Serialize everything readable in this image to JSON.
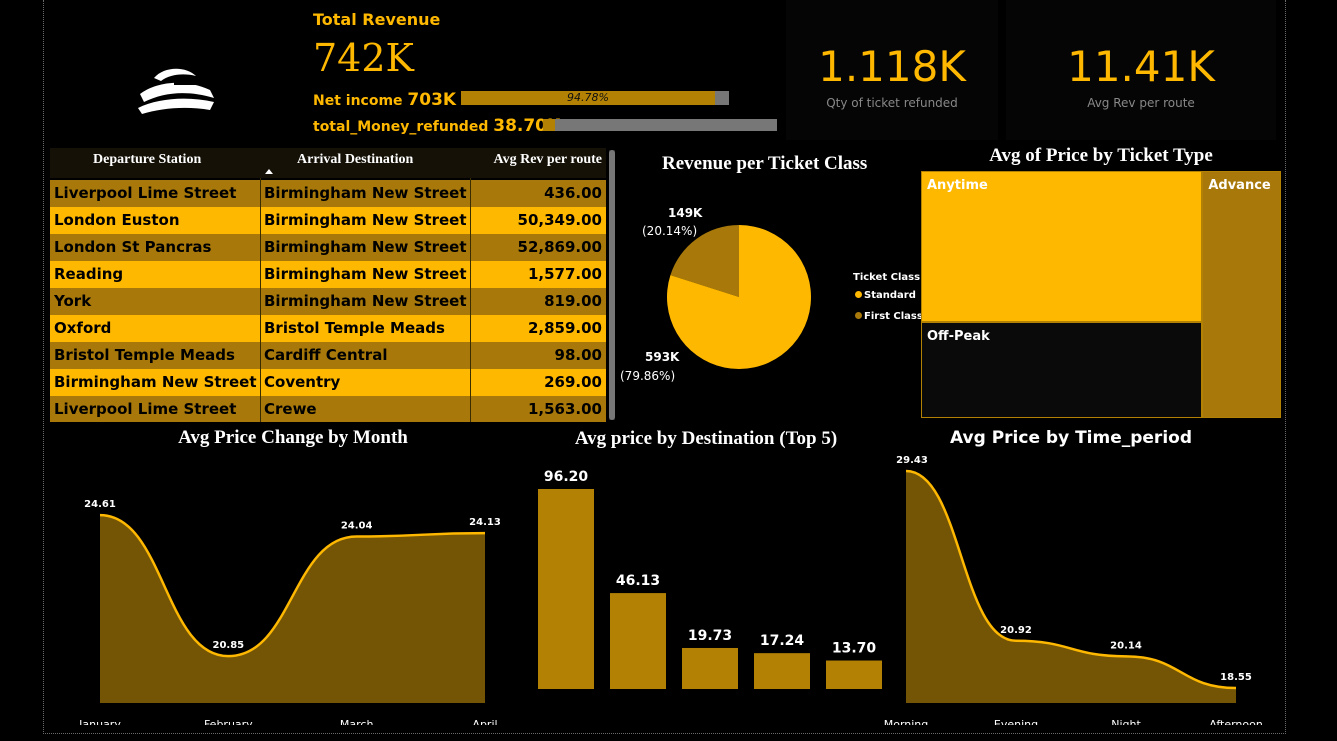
{
  "kpi": {
    "total_revenue_label": "Total Revenue",
    "total_revenue_value": "742K",
    "net_income_label": "Net income",
    "net_income_value": "703K",
    "net_income_pct_label": "94.78%",
    "net_income_fraction": 0.9478,
    "refund_label": "total_Money_refunded",
    "refund_value": "38.70K",
    "refund_fraction": 0.0522,
    "refunded_qty_value": "1.118K",
    "refunded_qty_label": "Qty of ticket refunded",
    "avg_rev_route_value": "11.41K",
    "avg_rev_route_label": "Avg Rev per route"
  },
  "table": {
    "headers": [
      "Departure Station",
      "Arrival Destination",
      "Avg Rev per route"
    ],
    "rows": [
      [
        "Liverpool Lime Street",
        "Birmingham New Street",
        "436.00"
      ],
      [
        "London Euston",
        "Birmingham New Street",
        "50,349.00"
      ],
      [
        "London St Pancras",
        "Birmingham New Street",
        "52,869.00"
      ],
      [
        "Reading",
        "Birmingham New Street",
        "1,577.00"
      ],
      [
        "York",
        "Birmingham New Street",
        "819.00"
      ],
      [
        "Oxford",
        "Bristol Temple Meads",
        "2,859.00"
      ],
      [
        "Bristol Temple Meads",
        "Cardiff Central",
        "98.00"
      ],
      [
        "Birmingham New Street",
        "Coventry",
        "269.00"
      ],
      [
        "Liverpool Lime Street",
        "Crewe",
        "1,563.00"
      ]
    ]
  },
  "colors": {
    "accent": "#FFB800",
    "dark_gold": "#A8790A",
    "area_fill": "#7A5A06",
    "bar_gold": "#B38204",
    "background": "#000000"
  },
  "chart_data": [
    {
      "type": "pie",
      "title": "Revenue per Ticket Class",
      "legend_title": "Ticket Class",
      "legend_placement": "right",
      "slices": [
        {
          "name": "Standard",
          "value": 593,
          "label": "593K",
          "pct_label": "(79.86%)",
          "color": "#FFB800"
        },
        {
          "name": "First Class",
          "value": 149,
          "label": "149K",
          "pct_label": "(20.14%)",
          "color": "#A8790A"
        }
      ]
    },
    {
      "type": "treemap",
      "title": "Avg of Price by Ticket Type",
      "items": [
        {
          "name": "Anytime",
          "value": 57,
          "color": "#FFB800"
        },
        {
          "name": "Off-Peak",
          "value": 36,
          "color": "#0a0a0a"
        },
        {
          "name": "Advance",
          "value": 26,
          "color": "#A8790A"
        }
      ]
    },
    {
      "type": "area",
      "title": "Avg Price Change by Month",
      "categories": [
        "January",
        "February",
        "March",
        "April"
      ],
      "values": [
        24.61,
        20.85,
        24.04,
        24.13
      ],
      "labels": [
        "24.61",
        "20.85",
        "24.04",
        "24.13"
      ],
      "ylim": [
        19.6,
        25.6
      ]
    },
    {
      "type": "bar",
      "title": "Avg price by Destination (Top 5)",
      "values": [
        96.2,
        46.13,
        19.73,
        17.24,
        13.7
      ],
      "labels": [
        "96.20",
        "46.13",
        "19.73",
        "17.24",
        "13.70"
      ],
      "ylim": [
        0,
        96.2
      ]
    },
    {
      "type": "area",
      "title": "Avg Price by Time_period",
      "categories": [
        "Morning",
        "Evening",
        "Night",
        "Afternoon"
      ],
      "values": [
        29.43,
        20.92,
        20.14,
        18.55
      ],
      "labels": [
        "29.43",
        "20.92",
        "20.14",
        "18.55"
      ],
      "ylim": [
        17.8,
        29.43
      ]
    }
  ]
}
